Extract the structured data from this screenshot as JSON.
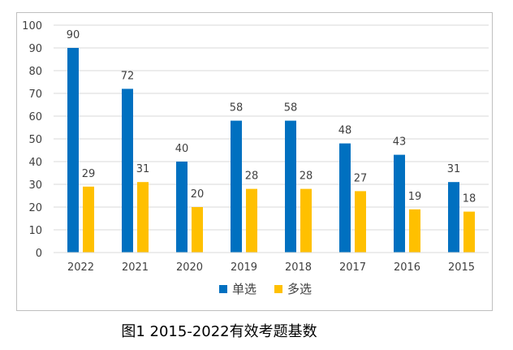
{
  "caption": "图1 2015-2022有效考题基数",
  "chart_data": {
    "type": "bar",
    "categories": [
      "2022",
      "2021",
      "2020",
      "2019",
      "2018",
      "2017",
      "2016",
      "2015"
    ],
    "series": [
      {
        "name": "单选",
        "values": [
          90,
          72,
          40,
          58,
          58,
          48,
          43,
          31
        ],
        "color": "#0070c0"
      },
      {
        "name": "多选",
        "values": [
          29,
          31,
          20,
          28,
          28,
          27,
          19,
          18
        ],
        "color": "#ffc000"
      }
    ],
    "ylim": [
      0,
      100
    ],
    "yticks": [
      0,
      10,
      20,
      30,
      40,
      50,
      60,
      70,
      80,
      90,
      100
    ],
    "grid": true,
    "legend": "bottom",
    "data_labels": true
  }
}
